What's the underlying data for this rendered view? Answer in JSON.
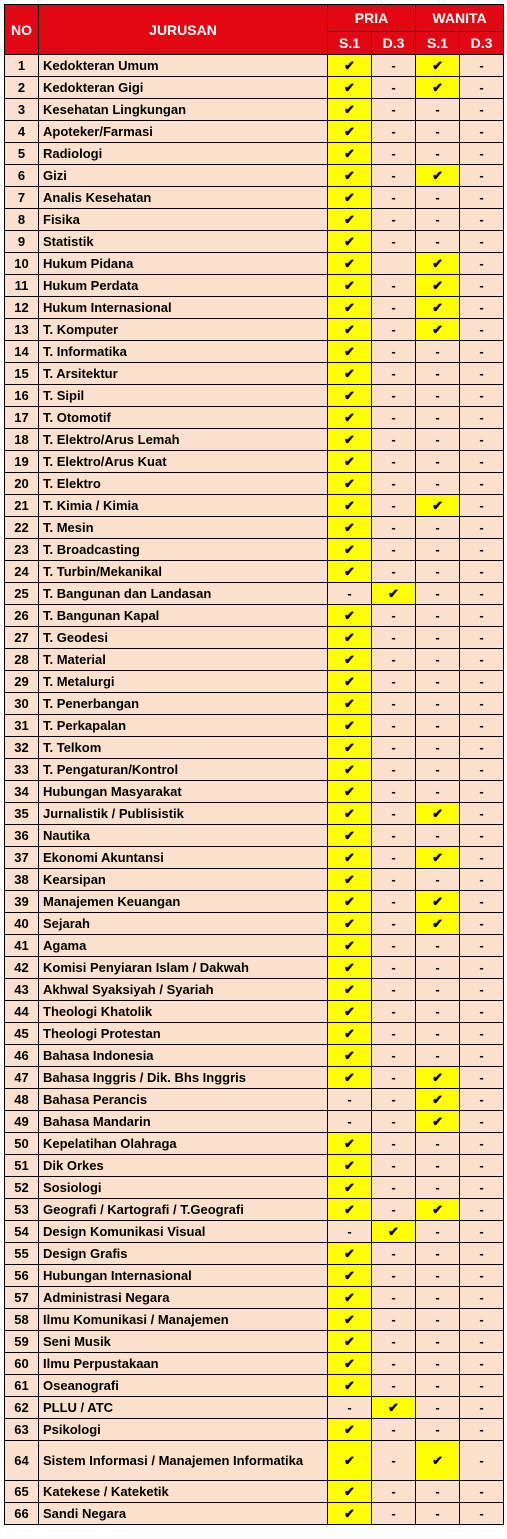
{
  "colors": {
    "header_bg": "#e30613",
    "header_fg": "#ffffff",
    "row_bg": "#fbe1cd",
    "check_bg": "#ffff00",
    "check_fg": "#000000",
    "dash_fg": "#000000",
    "border": "#000000",
    "text": "#000000"
  },
  "fonts": {
    "header_size": 14,
    "body_size": 13,
    "family": "Arial"
  },
  "headers": {
    "no": "NO",
    "jurusan": "JURUSAN",
    "pria": "PRIA",
    "wanita": "WANITA",
    "s1": "S.1",
    "d3": "D.3"
  },
  "glyphs": {
    "check": "✔",
    "dash": "-",
    "blank": ""
  },
  "rows": [
    {
      "no": "1",
      "jurusan": "Kedokteran Umum",
      "ps1": "c",
      "pd3": "d",
      "ws1": "c",
      "wd3": "d"
    },
    {
      "no": "2",
      "jurusan": "Kedokteran Gigi",
      "ps1": "c",
      "pd3": "d",
      "ws1": "c",
      "wd3": "d"
    },
    {
      "no": "3",
      "jurusan": "Kesehatan Lingkungan",
      "ps1": "c",
      "pd3": "d",
      "ws1": "d",
      "wd3": "d"
    },
    {
      "no": "4",
      "jurusan": "Apoteker/Farmasi",
      "ps1": "c",
      "pd3": "d",
      "ws1": "d",
      "wd3": "d"
    },
    {
      "no": "5",
      "jurusan": "Radiologi",
      "ps1": "c",
      "pd3": "d",
      "ws1": "d",
      "wd3": "d"
    },
    {
      "no": "6",
      "jurusan": "Gizi",
      "ps1": "c",
      "pd3": "d",
      "ws1": "c",
      "wd3": "d"
    },
    {
      "no": "7",
      "jurusan": "Analis Kesehatan",
      "ps1": "c",
      "pd3": "d",
      "ws1": "d",
      "wd3": "d"
    },
    {
      "no": "8",
      "jurusan": "Fisika",
      "ps1": "c",
      "pd3": "d",
      "ws1": "d",
      "wd3": "d"
    },
    {
      "no": "9",
      "jurusan": "Statistik",
      "ps1": "c",
      "pd3": "d",
      "ws1": "d",
      "wd3": "d"
    },
    {
      "no": "10",
      "jurusan": "Hukum Pidana",
      "ps1": "c",
      "pd3": "b",
      "ws1": "c",
      "wd3": "d"
    },
    {
      "no": "11",
      "jurusan": "Hukum Perdata",
      "ps1": "c",
      "pd3": "d",
      "ws1": "c",
      "wd3": "d"
    },
    {
      "no": "12",
      "jurusan": "Hukum Internasional",
      "ps1": "c",
      "pd3": "d",
      "ws1": "c",
      "wd3": "d"
    },
    {
      "no": "13",
      "jurusan": "T. Komputer",
      "ps1": "c",
      "pd3": "d",
      "ws1": "c",
      "wd3": "d"
    },
    {
      "no": "14",
      "jurusan": "T. Informatika",
      "ps1": "c",
      "pd3": "d",
      "ws1": "d",
      "wd3": "d"
    },
    {
      "no": "15",
      "jurusan": "T. Arsitektur",
      "ps1": "c",
      "pd3": "d",
      "ws1": "d",
      "wd3": "d"
    },
    {
      "no": "16",
      "jurusan": "T. Sipil",
      "ps1": "c",
      "pd3": "d",
      "ws1": "d",
      "wd3": "d"
    },
    {
      "no": "17",
      "jurusan": "T. Otomotif",
      "ps1": "c",
      "pd3": "d",
      "ws1": "d",
      "wd3": "d"
    },
    {
      "no": "18",
      "jurusan": "T. Elektro/Arus Lemah",
      "ps1": "c",
      "pd3": "d",
      "ws1": "d",
      "wd3": "d"
    },
    {
      "no": "19",
      "jurusan": "T. Elektro/Arus Kuat",
      "ps1": "c",
      "pd3": "d",
      "ws1": "d",
      "wd3": "d"
    },
    {
      "no": "20",
      "jurusan": "T. Elektro",
      "ps1": "c",
      "pd3": "d",
      "ws1": "d",
      "wd3": "d"
    },
    {
      "no": "21",
      "jurusan": "T. Kimia / Kimia",
      "ps1": "c",
      "pd3": "d",
      "ws1": "c",
      "wd3": "d"
    },
    {
      "no": "22",
      "jurusan": "T. Mesin",
      "ps1": "c",
      "pd3": "d",
      "ws1": "d",
      "wd3": "d"
    },
    {
      "no": "23",
      "jurusan": "T. Broadcasting",
      "ps1": "c",
      "pd3": "d",
      "ws1": "d",
      "wd3": "d"
    },
    {
      "no": "24",
      "jurusan": "T. Turbin/Mekanikal",
      "ps1": "c",
      "pd3": "d",
      "ws1": "d",
      "wd3": "d"
    },
    {
      "no": "25",
      "jurusan": "T. Bangunan dan Landasan",
      "ps1": "d",
      "pd3": "c",
      "ws1": "d",
      "wd3": "d"
    },
    {
      "no": "26",
      "jurusan": "T. Bangunan Kapal",
      "ps1": "c",
      "pd3": "d",
      "ws1": "d",
      "wd3": "d"
    },
    {
      "no": "27",
      "jurusan": "T. Geodesi",
      "ps1": "c",
      "pd3": "d",
      "ws1": "d",
      "wd3": "d"
    },
    {
      "no": "28",
      "jurusan": "T. Material",
      "ps1": "c",
      "pd3": "d",
      "ws1": "d",
      "wd3": "d"
    },
    {
      "no": "29",
      "jurusan": "T. Metalurgi",
      "ps1": "c",
      "pd3": "d",
      "ws1": "d",
      "wd3": "d"
    },
    {
      "no": "30",
      "jurusan": "T. Penerbangan",
      "ps1": "c",
      "pd3": "d",
      "ws1": "d",
      "wd3": "d"
    },
    {
      "no": "31",
      "jurusan": "T. Perkapalan",
      "ps1": "c",
      "pd3": "d",
      "ws1": "d",
      "wd3": "d"
    },
    {
      "no": "32",
      "jurusan": "T. Telkom",
      "ps1": "c",
      "pd3": "d",
      "ws1": "d",
      "wd3": "d"
    },
    {
      "no": "33",
      "jurusan": "T. Pengaturan/Kontrol",
      "ps1": "c",
      "pd3": "d",
      "ws1": "d",
      "wd3": "d"
    },
    {
      "no": "34",
      "jurusan": "Hubungan Masyarakat",
      "ps1": "c",
      "pd3": "d",
      "ws1": "d",
      "wd3": "d"
    },
    {
      "no": "35",
      "jurusan": "Jurnalistik / Publisistik",
      "ps1": "c",
      "pd3": "d",
      "ws1": "c",
      "wd3": "d"
    },
    {
      "no": "36",
      "jurusan": "Nautika",
      "ps1": "c",
      "pd3": "d",
      "ws1": "d",
      "wd3": "d"
    },
    {
      "no": "37",
      "jurusan": "Ekonomi Akuntansi",
      "ps1": "c",
      "pd3": "d",
      "ws1": "c",
      "wd3": "d"
    },
    {
      "no": "38",
      "jurusan": "Kearsipan",
      "ps1": "c",
      "pd3": "d",
      "ws1": "d",
      "wd3": "d"
    },
    {
      "no": "39",
      "jurusan": "Manajemen Keuangan",
      "ps1": "c",
      "pd3": "d",
      "ws1": "c",
      "wd3": "d"
    },
    {
      "no": "40",
      "jurusan": "Sejarah",
      "ps1": "c",
      "pd3": "d",
      "ws1": "c",
      "wd3": "d"
    },
    {
      "no": "41",
      "jurusan": "Agama",
      "ps1": "c",
      "pd3": "d",
      "ws1": "d",
      "wd3": "d"
    },
    {
      "no": "42",
      "jurusan": "Komisi Penyiaran Islam / Dakwah",
      "ps1": "c",
      "pd3": "d",
      "ws1": "d",
      "wd3": "d"
    },
    {
      "no": "43",
      "jurusan": "Akhwal Syaksiyah / Syariah",
      "ps1": "c",
      "pd3": "d",
      "ws1": "d",
      "wd3": "d"
    },
    {
      "no": "44",
      "jurusan": "Theologi Khatolik",
      "ps1": "c",
      "pd3": "d",
      "ws1": "d",
      "wd3": "d"
    },
    {
      "no": "45",
      "jurusan": "Theologi Protestan",
      "ps1": "c",
      "pd3": "d",
      "ws1": "d",
      "wd3": "d"
    },
    {
      "no": "46",
      "jurusan": "Bahasa Indonesia",
      "ps1": "c",
      "pd3": "d",
      "ws1": "d",
      "wd3": "d"
    },
    {
      "no": "47",
      "jurusan": "Bahasa Inggris / Dik. Bhs Inggris",
      "ps1": "c",
      "pd3": "d",
      "ws1": "c",
      "wd3": "d"
    },
    {
      "no": "48",
      "jurusan": "Bahasa Perancis",
      "ps1": "d",
      "pd3": "d",
      "ws1": "c",
      "wd3": "d"
    },
    {
      "no": "49",
      "jurusan": "Bahasa Mandarin",
      "ps1": "d",
      "pd3": "d",
      "ws1": "c",
      "wd3": "d"
    },
    {
      "no": "50",
      "jurusan": "Kepelatihan Olahraga",
      "ps1": "c",
      "pd3": "d",
      "ws1": "d",
      "wd3": "d"
    },
    {
      "no": "51",
      "jurusan": "Dik Orkes",
      "ps1": "c",
      "pd3": "d",
      "ws1": "d",
      "wd3": "d"
    },
    {
      "no": "52",
      "jurusan": "Sosiologi",
      "ps1": "c",
      "pd3": "d",
      "ws1": "d",
      "wd3": "d"
    },
    {
      "no": "53",
      "jurusan": "Geografi / Kartografi / T.Geografi",
      "ps1": "c",
      "pd3": "d",
      "ws1": "c",
      "wd3": "d"
    },
    {
      "no": "54",
      "jurusan": "Design Komunikasi Visual",
      "ps1": "d",
      "pd3": "c",
      "ws1": "d",
      "wd3": "d"
    },
    {
      "no": "55",
      "jurusan": "Design Grafis",
      "ps1": "c",
      "pd3": "d",
      "ws1": "d",
      "wd3": "d"
    },
    {
      "no": "56",
      "jurusan": "Hubungan Internasional",
      "ps1": "c",
      "pd3": "d",
      "ws1": "d",
      "wd3": "d"
    },
    {
      "no": "57",
      "jurusan": "Administrasi Negara",
      "ps1": "c",
      "pd3": "d",
      "ws1": "d",
      "wd3": "d"
    },
    {
      "no": "58",
      "jurusan": "Ilmu Komunikasi / Manajemen",
      "ps1": "c",
      "pd3": "d",
      "ws1": "d",
      "wd3": "d"
    },
    {
      "no": "59",
      "jurusan": "Seni Musik",
      "ps1": "c",
      "pd3": "d",
      "ws1": "d",
      "wd3": "d"
    },
    {
      "no": "60",
      "jurusan": "Ilmu Perpustakaan",
      "ps1": "c",
      "pd3": "d",
      "ws1": "d",
      "wd3": "d"
    },
    {
      "no": "61",
      "jurusan": "Oseanografi",
      "ps1": "c",
      "pd3": "d",
      "ws1": "d",
      "wd3": "d"
    },
    {
      "no": "62",
      "jurusan": "PLLU / ATC",
      "ps1": "d",
      "pd3": "c",
      "ws1": "d",
      "wd3": "d"
    },
    {
      "no": "63",
      "jurusan": "Psikologi",
      "ps1": "c",
      "pd3": "d",
      "ws1": "d",
      "wd3": "d"
    },
    {
      "no": "64",
      "jurusan": "Sistem Informasi / Manajemen Informatika",
      "ps1": "c",
      "pd3": "d",
      "ws1": "c",
      "wd3": "d",
      "tall": true
    },
    {
      "no": "65",
      "jurusan": "Katekese / Kateketik",
      "ps1": "c",
      "pd3": "d",
      "ws1": "d",
      "wd3": "d"
    },
    {
      "no": "66",
      "jurusan": "Sandi Negara",
      "ps1": "c",
      "pd3": "d",
      "ws1": "d",
      "wd3": "d"
    }
  ]
}
